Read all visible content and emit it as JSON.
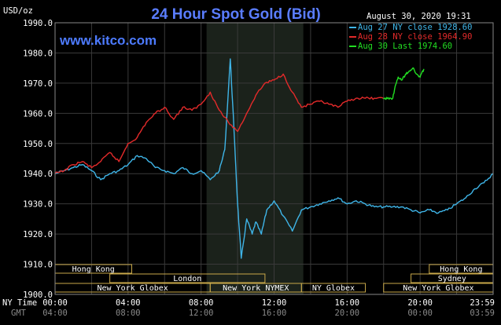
{
  "page": {
    "title": "24 Hour Spot Gold (Bid)",
    "website": "www.kitco.com",
    "timestamp": "August 30, 2020 19:31",
    "y_unit": "USD/oz",
    "ny_time_label": "NY Time",
    "gmt_label": "GMT"
  },
  "legend": [
    {
      "label": "Aug 27 NY close 1928.60",
      "color": "#3fb5e8"
    },
    {
      "label": "Aug 28 NY close 1964.90",
      "color": "#e32a2a"
    },
    {
      "label": "Aug 30 Last 1974.60",
      "color": "#22dd22"
    }
  ],
  "x_ticks_ny": [
    "00:00",
    "04:00",
    "08:00",
    "12:00",
    "16:00",
    "20:00",
    "23:59"
  ],
  "x_ticks_gmt": [
    "04:00",
    "08:00",
    "12:00",
    "16:00",
    "20:00",
    "00:00",
    "03:59"
  ],
  "sessions": [
    {
      "label": "Hong Kong",
      "row": 0,
      "start": 0.0,
      "end": 4.2
    },
    {
      "label": "London",
      "row": 1,
      "start": 3.0,
      "end": 11.5
    },
    {
      "label": "New York Globex",
      "row": 2,
      "start": 0.0,
      "end": 8.5
    },
    {
      "label": "New York NYMEX",
      "row": 2,
      "start": 8.5,
      "end": 13.5
    },
    {
      "label": "NY Globex",
      "row": 2,
      "start": 13.5,
      "end": 17.0
    },
    {
      "label": "Hong Kong",
      "row": 0,
      "start": 20.5,
      "end": 24.0
    },
    {
      "label": "Sydney",
      "row": 1,
      "start": 19.5,
      "end": 24.0
    },
    {
      "label": "New York Globex",
      "row": 2,
      "start": 18.0,
      "end": 24.0
    }
  ],
  "chart_data": {
    "type": "line",
    "title": "24 Hour Spot Gold (Bid)",
    "ylabel": "USD/oz",
    "xlabel": "",
    "x_unit": "NY time hours",
    "xlim": [
      0,
      24
    ],
    "ylim": [
      1900,
      1990
    ],
    "y_ticks": [
      1900.0,
      1910.0,
      1920.0,
      1930.0,
      1940.0,
      1950.0,
      1960.0,
      1970.0,
      1980.0,
      1990.0
    ],
    "grid": true,
    "legend_position": "top-right",
    "shaded_range": [
      8.3,
      13.6
    ],
    "series": [
      {
        "name": "Aug 27 NY close 1928.60",
        "color": "#3fb5e8",
        "x": [
          0,
          0.5,
          1,
          1.5,
          2,
          2.5,
          3,
          3.5,
          4,
          4.5,
          5,
          5.5,
          6,
          6.5,
          7,
          7.5,
          8,
          8.5,
          9,
          9.3,
          9.6,
          9.8,
          10.0,
          10.2,
          10.5,
          10.8,
          11.0,
          11.3,
          11.6,
          12,
          12.5,
          13,
          13.5,
          14,
          14.5,
          15,
          15.5,
          16,
          16.5,
          17,
          17.5,
          18,
          18.5,
          19,
          19.5,
          20,
          20.5,
          21,
          21.5,
          22,
          22.5,
          23,
          23.5,
          23.99
        ],
        "values": [
          1940,
          1941,
          1942,
          1943,
          1941,
          1938,
          1940,
          1941,
          1943,
          1946,
          1945,
          1942,
          1941,
          1940,
          1942,
          1940,
          1941,
          1938,
          1941,
          1948,
          1978,
          1955,
          1930,
          1912,
          1925,
          1920,
          1924,
          1920,
          1928,
          1931,
          1926,
          1921,
          1928,
          1929,
          1930,
          1931,
          1932,
          1930,
          1931,
          1930,
          1929,
          1929,
          1929,
          1929,
          1928,
          1927,
          1928,
          1927,
          1928,
          1930,
          1932,
          1935,
          1937,
          1940
        ]
      },
      {
        "name": "Aug 28 NY close 1964.90",
        "color": "#e32a2a",
        "x": [
          0,
          0.5,
          1,
          1.5,
          2,
          2.5,
          3,
          3.5,
          4,
          4.5,
          5,
          5.5,
          6,
          6.5,
          7,
          7.5,
          8,
          8.5,
          9,
          9.5,
          10,
          10.5,
          11,
          11.5,
          12,
          12.5,
          13,
          13.5,
          14,
          14.5,
          15,
          15.5,
          16,
          16.5,
          17,
          17.5,
          18
        ],
        "values": [
          1940,
          1941,
          1943,
          1944,
          1942,
          1944,
          1947,
          1944,
          1950,
          1952,
          1957,
          1960,
          1962,
          1958,
          1962,
          1961,
          1963,
          1967,
          1961,
          1957,
          1954,
          1960,
          1966,
          1970,
          1971,
          1973,
          1967,
          1962,
          1963,
          1964,
          1963,
          1962,
          1964,
          1965,
          1965,
          1965,
          1964.9
        ]
      },
      {
        "name": "Aug 30 Last 1974.60",
        "color": "#22dd22",
        "x": [
          18.0,
          18.2,
          18.5,
          18.6,
          18.8,
          19.0,
          19.2,
          19.4,
          19.6,
          19.8,
          20.0,
          20.2
        ],
        "values": [
          1964.9,
          1964.9,
          1965,
          1968,
          1972,
          1971,
          1973,
          1974,
          1975,
          1973,
          1972,
          1974.6
        ]
      }
    ]
  }
}
